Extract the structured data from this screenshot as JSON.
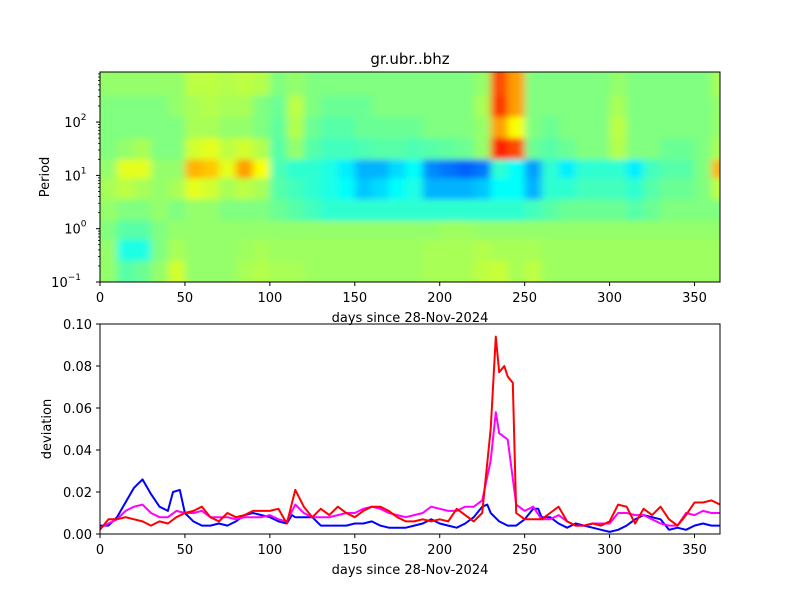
{
  "chart_data": [
    {
      "type": "heatmap",
      "title": "gr.ubr..bhz",
      "xlabel": "days since 28-Nov-2024",
      "ylabel": "Period",
      "xlim": [
        0,
        365
      ],
      "ylim": [
        0.1,
        870
      ],
      "yscale": "log",
      "colormap": "jet",
      "xticks": [
        0,
        50,
        100,
        150,
        200,
        250,
        300,
        350
      ],
      "yticks": [
        {
          "base": "10",
          "exp": "−1",
          "value": 0.1
        },
        {
          "base": "10",
          "exp": "0",
          "value": 1
        },
        {
          "base": "10",
          "exp": "1",
          "value": 10
        },
        {
          "base": "10",
          "exp": "2",
          "value": 100
        }
      ],
      "x_bin_days": 10,
      "row_log10_period": [
        2.7,
        2.3,
        1.9,
        1.5,
        1.1,
        0.75,
        0.35,
        -0.05,
        -0.4,
        -0.8
      ],
      "values": [
        [
          0.52,
          0.52,
          0.52,
          0.52,
          0.52,
          0.56,
          0.56,
          0.55,
          0.56,
          0.55,
          0.5,
          0.52,
          0.5,
          0.5,
          0.5,
          0.5,
          0.5,
          0.5,
          0.5,
          0.5,
          0.5,
          0.5,
          0.52,
          0.8,
          0.72,
          0.5,
          0.5,
          0.5,
          0.5,
          0.5,
          0.52,
          0.5,
          0.5,
          0.5,
          0.5,
          0.5,
          0.54
        ],
        [
          0.5,
          0.5,
          0.5,
          0.5,
          0.52,
          0.54,
          0.55,
          0.54,
          0.54,
          0.5,
          0.48,
          0.56,
          0.5,
          0.48,
          0.48,
          0.48,
          0.5,
          0.5,
          0.5,
          0.5,
          0.5,
          0.5,
          0.54,
          0.82,
          0.72,
          0.5,
          0.5,
          0.5,
          0.5,
          0.5,
          0.54,
          0.5,
          0.5,
          0.5,
          0.5,
          0.5,
          0.52
        ],
        [
          0.5,
          0.5,
          0.5,
          0.5,
          0.5,
          0.54,
          0.54,
          0.52,
          0.52,
          0.5,
          0.47,
          0.55,
          0.48,
          0.46,
          0.46,
          0.48,
          0.48,
          0.48,
          0.48,
          0.5,
          0.5,
          0.5,
          0.52,
          0.72,
          0.62,
          0.5,
          0.48,
          0.5,
          0.5,
          0.5,
          0.56,
          0.5,
          0.5,
          0.5,
          0.5,
          0.5,
          0.52
        ],
        [
          0.5,
          0.52,
          0.54,
          0.5,
          0.5,
          0.58,
          0.6,
          0.56,
          0.58,
          0.55,
          0.46,
          0.52,
          0.46,
          0.44,
          0.44,
          0.45,
          0.46,
          0.46,
          0.45,
          0.46,
          0.47,
          0.48,
          0.52,
          0.85,
          0.8,
          0.48,
          0.46,
          0.48,
          0.5,
          0.5,
          0.55,
          0.5,
          0.5,
          0.48,
          0.48,
          0.5,
          0.54
        ],
        [
          0.52,
          0.6,
          0.6,
          0.52,
          0.52,
          0.7,
          0.68,
          0.6,
          0.72,
          0.62,
          0.45,
          0.42,
          0.42,
          0.4,
          0.36,
          0.3,
          0.3,
          0.34,
          0.38,
          0.26,
          0.24,
          0.22,
          0.24,
          0.42,
          0.38,
          0.28,
          0.42,
          0.36,
          0.42,
          0.42,
          0.42,
          0.36,
          0.44,
          0.46,
          0.46,
          0.5,
          0.7
        ],
        [
          0.54,
          0.56,
          0.54,
          0.52,
          0.54,
          0.6,
          0.58,
          0.54,
          0.56,
          0.54,
          0.46,
          0.44,
          0.42,
          0.4,
          0.38,
          0.32,
          0.34,
          0.38,
          0.4,
          0.3,
          0.3,
          0.3,
          0.32,
          0.38,
          0.38,
          0.3,
          0.42,
          0.42,
          0.44,
          0.44,
          0.44,
          0.42,
          0.46,
          0.48,
          0.48,
          0.5,
          0.56
        ],
        [
          0.52,
          0.5,
          0.5,
          0.52,
          0.5,
          0.52,
          0.52,
          0.5,
          0.5,
          0.5,
          0.48,
          0.46,
          0.44,
          0.42,
          0.42,
          0.42,
          0.42,
          0.42,
          0.42,
          0.42,
          0.42,
          0.42,
          0.42,
          0.42,
          0.42,
          0.44,
          0.46,
          0.48,
          0.48,
          0.48,
          0.48,
          0.46,
          0.48,
          0.5,
          0.5,
          0.5,
          0.5
        ],
        [
          0.5,
          0.46,
          0.46,
          0.5,
          0.52,
          0.52,
          0.52,
          0.52,
          0.52,
          0.52,
          0.52,
          0.52,
          0.52,
          0.52,
          0.52,
          0.52,
          0.52,
          0.52,
          0.52,
          0.52,
          0.53,
          0.53,
          0.52,
          0.52,
          0.52,
          0.52,
          0.52,
          0.52,
          0.52,
          0.52,
          0.52,
          0.52,
          0.52,
          0.52,
          0.52,
          0.52,
          0.52
        ],
        [
          0.52,
          0.4,
          0.4,
          0.5,
          0.54,
          0.52,
          0.52,
          0.52,
          0.53,
          0.54,
          0.53,
          0.53,
          0.53,
          0.53,
          0.53,
          0.53,
          0.53,
          0.53,
          0.53,
          0.54,
          0.54,
          0.54,
          0.55,
          0.54,
          0.54,
          0.54,
          0.53,
          0.53,
          0.53,
          0.53,
          0.53,
          0.53,
          0.53,
          0.53,
          0.53,
          0.53,
          0.53
        ],
        [
          0.52,
          0.46,
          0.48,
          0.52,
          0.58,
          0.52,
          0.52,
          0.52,
          0.54,
          0.55,
          0.54,
          0.54,
          0.53,
          0.53,
          0.53,
          0.53,
          0.53,
          0.53,
          0.53,
          0.54,
          0.54,
          0.54,
          0.56,
          0.57,
          0.54,
          0.56,
          0.53,
          0.53,
          0.53,
          0.53,
          0.53,
          0.53,
          0.53,
          0.53,
          0.53,
          0.53,
          0.53
        ]
      ]
    },
    {
      "type": "line",
      "xlabel": "days since 28-Nov-2024",
      "ylabel": "deviation",
      "xlim": [
        0,
        365
      ],
      "ylim": [
        0,
        0.1
      ],
      "xticks": [
        0,
        50,
        100,
        150,
        200,
        250,
        300,
        350
      ],
      "yticks": [
        "0.00",
        "0.02",
        "0.04",
        "0.06",
        "0.08",
        "0.10"
      ],
      "series": [
        {
          "name": "blue",
          "color": "#0000ff",
          "x": [
            0,
            5,
            10,
            15,
            20,
            25,
            30,
            35,
            40,
            43,
            47,
            50,
            55,
            60,
            65,
            70,
            75,
            80,
            85,
            90,
            95,
            100,
            105,
            110,
            113,
            115,
            120,
            125,
            130,
            135,
            140,
            145,
            150,
            155,
            160,
            165,
            170,
            175,
            180,
            185,
            190,
            195,
            200,
            205,
            210,
            215,
            220,
            225,
            228,
            230,
            235,
            240,
            245,
            250,
            255,
            258,
            260,
            265,
            270,
            275,
            280,
            285,
            290,
            295,
            300,
            305,
            310,
            315,
            320,
            325,
            330,
            335,
            340,
            345,
            350,
            355,
            360,
            365
          ],
          "y": [
            0.004,
            0.004,
            0.008,
            0.015,
            0.022,
            0.026,
            0.019,
            0.013,
            0.011,
            0.02,
            0.021,
            0.01,
            0.006,
            0.004,
            0.004,
            0.005,
            0.004,
            0.006,
            0.009,
            0.01,
            0.009,
            0.008,
            0.006,
            0.005,
            0.009,
            0.008,
            0.008,
            0.008,
            0.004,
            0.004,
            0.004,
            0.004,
            0.005,
            0.005,
            0.006,
            0.004,
            0.003,
            0.003,
            0.003,
            0.004,
            0.005,
            0.007,
            0.005,
            0.004,
            0.003,
            0.005,
            0.008,
            0.013,
            0.014,
            0.01,
            0.006,
            0.004,
            0.004,
            0.007,
            0.012,
            0.012,
            0.008,
            0.008,
            0.005,
            0.003,
            0.005,
            0.004,
            0.003,
            0.002,
            0.001,
            0.002,
            0.004,
            0.007,
            0.009,
            0.008,
            0.007,
            0.002,
            0.003,
            0.002,
            0.004,
            0.005,
            0.004,
            0.004
          ]
        },
        {
          "name": "magenta",
          "color": "#ff00ff",
          "x": [
            0,
            5,
            10,
            15,
            20,
            25,
            30,
            35,
            40,
            45,
            50,
            55,
            60,
            65,
            70,
            75,
            80,
            85,
            90,
            95,
            100,
            105,
            110,
            115,
            120,
            125,
            130,
            135,
            140,
            145,
            150,
            155,
            160,
            165,
            170,
            175,
            180,
            185,
            190,
            195,
            200,
            205,
            210,
            215,
            220,
            225,
            230,
            233,
            235,
            240,
            245,
            250,
            255,
            260,
            265,
            270,
            275,
            280,
            285,
            290,
            295,
            300,
            305,
            310,
            315,
            320,
            325,
            330,
            335,
            340,
            345,
            350,
            355,
            360,
            365
          ],
          "y": [
            0.003,
            0.005,
            0.007,
            0.011,
            0.013,
            0.014,
            0.01,
            0.008,
            0.008,
            0.011,
            0.01,
            0.01,
            0.011,
            0.008,
            0.008,
            0.008,
            0.007,
            0.008,
            0.008,
            0.008,
            0.009,
            0.007,
            0.006,
            0.014,
            0.01,
            0.008,
            0.008,
            0.008,
            0.009,
            0.01,
            0.01,
            0.012,
            0.013,
            0.012,
            0.01,
            0.009,
            0.008,
            0.009,
            0.01,
            0.013,
            0.012,
            0.011,
            0.011,
            0.013,
            0.013,
            0.016,
            0.035,
            0.058,
            0.048,
            0.045,
            0.014,
            0.011,
            0.013,
            0.007,
            0.007,
            0.009,
            0.006,
            0.004,
            0.004,
            0.005,
            0.005,
            0.005,
            0.01,
            0.01,
            0.009,
            0.009,
            0.007,
            0.005,
            0.004,
            0.004,
            0.01,
            0.009,
            0.011,
            0.01,
            0.01
          ]
        },
        {
          "name": "red",
          "color": "#ff0000",
          "x": [
            0,
            5,
            10,
            15,
            20,
            25,
            30,
            35,
            40,
            45,
            50,
            55,
            60,
            65,
            70,
            75,
            80,
            85,
            90,
            95,
            100,
            105,
            110,
            115,
            120,
            125,
            130,
            135,
            140,
            145,
            150,
            155,
            160,
            165,
            170,
            175,
            180,
            185,
            190,
            195,
            200,
            205,
            210,
            215,
            220,
            225,
            230,
            233,
            235,
            238,
            240,
            243,
            245,
            250,
            255,
            260,
            265,
            270,
            275,
            280,
            285,
            290,
            295,
            300,
            305,
            310,
            315,
            320,
            325,
            330,
            335,
            340,
            345,
            350,
            355,
            360,
            365
          ],
          "y": [
            0.002,
            0.007,
            0.007,
            0.008,
            0.007,
            0.006,
            0.004,
            0.006,
            0.005,
            0.008,
            0.01,
            0.011,
            0.013,
            0.008,
            0.006,
            0.01,
            0.008,
            0.009,
            0.011,
            0.011,
            0.011,
            0.012,
            0.005,
            0.021,
            0.013,
            0.008,
            0.012,
            0.009,
            0.013,
            0.01,
            0.008,
            0.011,
            0.013,
            0.013,
            0.011,
            0.008,
            0.006,
            0.006,
            0.007,
            0.006,
            0.007,
            0.006,
            0.012,
            0.009,
            0.006,
            0.01,
            0.05,
            0.094,
            0.077,
            0.08,
            0.075,
            0.072,
            0.01,
            0.007,
            0.007,
            0.007,
            0.01,
            0.013,
            0.006,
            0.004,
            0.004,
            0.005,
            0.004,
            0.006,
            0.014,
            0.013,
            0.005,
            0.012,
            0.009,
            0.013,
            0.007,
            0.004,
            0.009,
            0.015,
            0.015,
            0.016,
            0.014
          ]
        }
      ]
    }
  ]
}
